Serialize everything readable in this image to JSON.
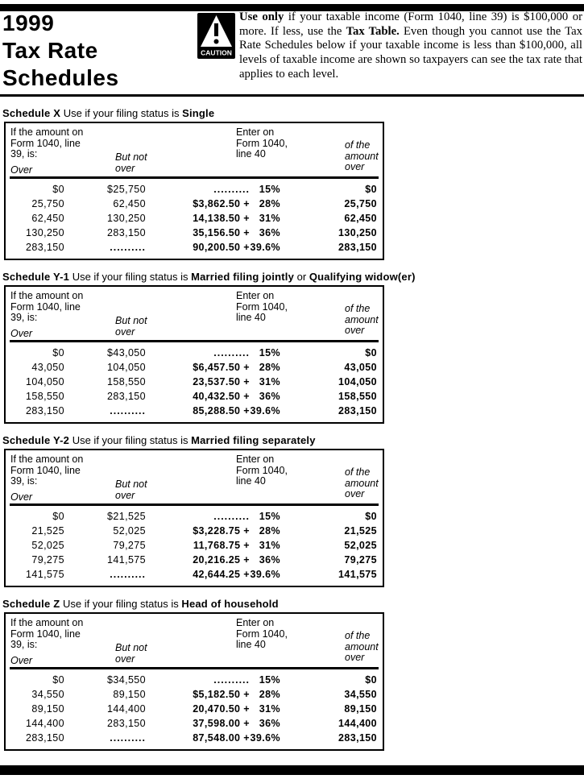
{
  "page": {
    "title_lines": [
      "1999",
      "Tax Rate",
      "Schedules"
    ],
    "caution_label": "CAUTION",
    "notice_segments": [
      {
        "t": "Use ",
        "b": 1
      },
      {
        "t": "only",
        "b": 1
      },
      {
        "t": " if your taxable income (Form 1040, line 39) is $100,000 or more. If less, use the ",
        "b": 0
      },
      {
        "t": "Tax Table.",
        "b": 1
      },
      {
        "t": " Even though you cannot use the Tax Rate Schedules below if your taxable income is less than $100,000, all levels of taxable income are shown so taxpayers can see the tax rate that applies to each level.",
        "b": 0
      }
    ]
  },
  "table_header": {
    "col1_lines": [
      "If the amount on",
      "Form 1040, line",
      "39, is:"
    ],
    "col1_over": "Over",
    "col2_lines": [
      "But not",
      "over"
    ],
    "col3_lines": [
      "Enter on",
      "Form 1040,",
      "line 40"
    ],
    "col4_lines": [
      "of the",
      "amount",
      "over"
    ]
  },
  "schedules": [
    {
      "title_segments": [
        {
          "t": "Schedule X",
          "b": 1
        },
        {
          "t": "   Use if your filing status is ",
          "b": 0
        },
        {
          "t": "Single",
          "b": 1
        }
      ],
      "rows": [
        {
          "over": "$0",
          "but_not_over": "$25,750",
          "base": "..........",
          "pct": "15%",
          "amount_over": "$0"
        },
        {
          "over": "25,750",
          "but_not_over": "62,450",
          "base": "$3,862.50 +",
          "pct": "28%",
          "amount_over": "25,750"
        },
        {
          "over": "62,450",
          "but_not_over": "130,250",
          "base": "14,138.50 +",
          "pct": "31%",
          "amount_over": "62,450"
        },
        {
          "over": "130,250",
          "but_not_over": "283,150",
          "base": "35,156.50 +",
          "pct": "36%",
          "amount_over": "130,250"
        },
        {
          "over": "283,150",
          "but_not_over": "..........",
          "base": "90,200.50 +",
          "pct": "39.6%",
          "amount_over": "283,150"
        }
      ]
    },
    {
      "title_segments": [
        {
          "t": "Schedule Y-1",
          "b": 1
        },
        {
          "t": "   Use if your filing status is ",
          "b": 0
        },
        {
          "t": "Married filing jointly",
          "b": 1
        },
        {
          "t": " or ",
          "b": 0
        },
        {
          "t": "Qualifying widow(er)",
          "b": 1
        }
      ],
      "rows": [
        {
          "over": "$0",
          "but_not_over": "$43,050",
          "base": "..........",
          "pct": "15%",
          "amount_over": "$0"
        },
        {
          "over": "43,050",
          "but_not_over": "104,050",
          "base": "$6,457.50 +",
          "pct": "28%",
          "amount_over": "43,050"
        },
        {
          "over": "104,050",
          "but_not_over": "158,550",
          "base": "23,537.50 +",
          "pct": "31%",
          "amount_over": "104,050"
        },
        {
          "over": "158,550",
          "but_not_over": "283,150",
          "base": "40,432.50 +",
          "pct": "36%",
          "amount_over": "158,550"
        },
        {
          "over": "283,150",
          "but_not_over": "..........",
          "base": "85,288.50 +",
          "pct": "39.6%",
          "amount_over": "283,150"
        }
      ]
    },
    {
      "title_segments": [
        {
          "t": "Schedule Y-2",
          "b": 1
        },
        {
          "t": "   Use if your filing status is ",
          "b": 0
        },
        {
          "t": "Married filing separately",
          "b": 1
        }
      ],
      "rows": [
        {
          "over": "$0",
          "but_not_over": "$21,525",
          "base": "..........",
          "pct": "15%",
          "amount_over": "$0"
        },
        {
          "over": "21,525",
          "but_not_over": "52,025",
          "base": "$3,228.75 +",
          "pct": "28%",
          "amount_over": "21,525"
        },
        {
          "over": "52,025",
          "but_not_over": "79,275",
          "base": "11,768.75 +",
          "pct": "31%",
          "amount_over": "52,025"
        },
        {
          "over": "79,275",
          "but_not_over": "141,575",
          "base": "20,216.25 +",
          "pct": "36%",
          "amount_over": "79,275"
        },
        {
          "over": "141,575",
          "but_not_over": "..........",
          "base": "42,644.25 +",
          "pct": "39.6%",
          "amount_over": "141,575"
        }
      ]
    },
    {
      "title_segments": [
        {
          "t": "Schedule Z",
          "b": 1
        },
        {
          "t": "   Use if your filing status is ",
          "b": 0
        },
        {
          "t": "Head of household",
          "b": 1
        }
      ],
      "rows": [
        {
          "over": "$0",
          "but_not_over": "$34,550",
          "base": "..........",
          "pct": "15%",
          "amount_over": "$0"
        },
        {
          "over": "34,550",
          "but_not_over": "89,150",
          "base": "$5,182.50 +",
          "pct": "28%",
          "amount_over": "34,550"
        },
        {
          "over": "89,150",
          "but_not_over": "144,400",
          "base": "20,470.50 +",
          "pct": "31%",
          "amount_over": "89,150"
        },
        {
          "over": "144,400",
          "but_not_over": "283,150",
          "base": "37,598.00 +",
          "pct": "36%",
          "amount_over": "144,400"
        },
        {
          "over": "283,150",
          "but_not_over": "..........",
          "base": "87,548.00 +",
          "pct": "39.6%",
          "amount_over": "283,150"
        }
      ]
    }
  ]
}
